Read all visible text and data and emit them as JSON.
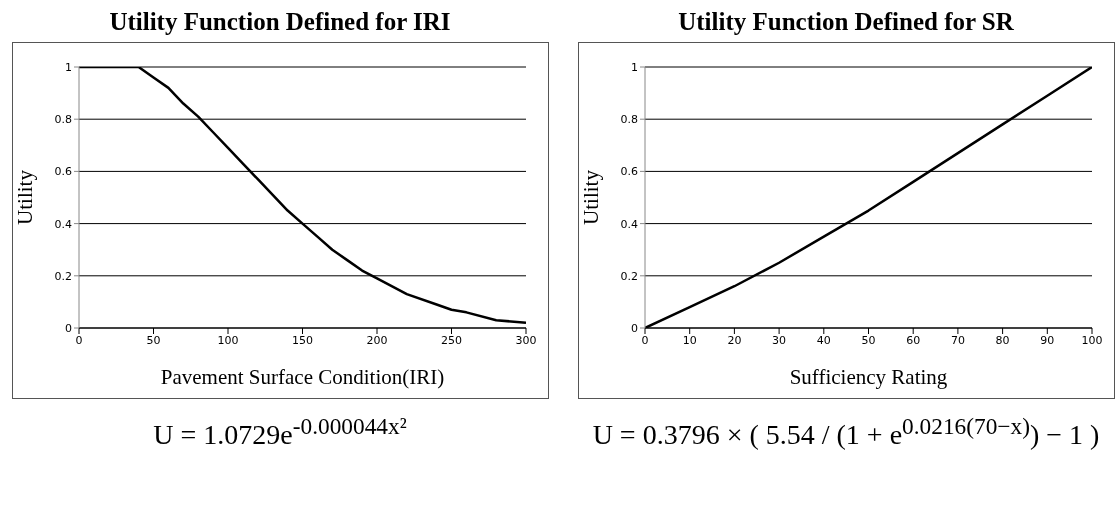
{
  "chart_data": [
    {
      "type": "line",
      "title": "Utility Function Defined for IRI",
      "xlabel": "Pavement Surface Condition(IRI)",
      "ylabel": "Utility",
      "x": [
        0,
        20,
        40,
        50,
        60,
        70,
        80,
        90,
        100,
        110,
        120,
        130,
        140,
        150,
        160,
        170,
        180,
        190,
        200,
        220,
        240,
        250,
        260,
        280,
        300
      ],
      "series": [
        {
          "color": "#000000",
          "values": [
            1,
            1,
            1,
            0.96,
            0.92,
            0.86,
            0.81,
            0.75,
            0.69,
            0.63,
            0.57,
            0.51,
            0.45,
            0.4,
            0.35,
            0.3,
            0.26,
            0.22,
            0.19,
            0.13,
            0.09,
            0.07,
            0.06,
            0.03,
            0.02
          ]
        }
      ],
      "xlim": [
        0,
        300
      ],
      "xticks": [
        0,
        50,
        100,
        150,
        200,
        250,
        300
      ],
      "ylim": [
        0,
        1
      ],
      "yticks": [
        0,
        0.2,
        0.4,
        0.6,
        0.8,
        1
      ],
      "grid": "y",
      "marker": "none",
      "line_style": "solid",
      "annotations": [
        "U = 1.0729e$^{-0.000044x²}$"
      ]
    },
    {
      "type": "line",
      "title": "Utility Function Defined for SR",
      "xlabel": "Sufficiency Rating",
      "ylabel": "Utility",
      "x": [
        0,
        10,
        20,
        30,
        40,
        50,
        60,
        70,
        80,
        90,
        100
      ],
      "series": [
        {
          "color": "#000000",
          "values": [
            0,
            0.08,
            0.16,
            0.25,
            0.35,
            0.45,
            0.56,
            0.67,
            0.78,
            0.89,
            1
          ]
        }
      ],
      "xlim": [
        0,
        100
      ],
      "xticks": [
        0,
        10,
        20,
        30,
        40,
        50,
        60,
        70,
        80,
        90,
        100
      ],
      "ylim": [
        0,
        1
      ],
      "yticks": [
        0,
        0.2,
        0.4,
        0.6,
        0.8,
        1
      ],
      "grid": "y",
      "marker": "none",
      "line_style": "solid",
      "annotations": [
        "U = 0.3796 × ( 5.54 / (1 + e$^{0.0216(70−x)}$) − 1 )"
      ]
    }
  ]
}
